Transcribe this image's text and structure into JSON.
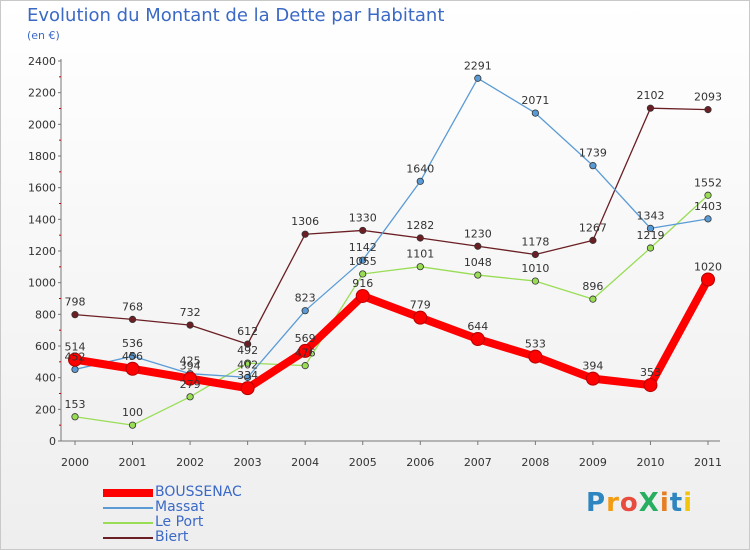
{
  "chart_data": {
    "type": "line",
    "title": "Evolution du Montant de la Dette par Habitant",
    "subtitle": "(en €)",
    "x": [
      "2000",
      "2001",
      "2002",
      "2003",
      "2004",
      "2005",
      "2006",
      "2007",
      "2008",
      "2009",
      "2010",
      "2011"
    ],
    "yticks": [
      0,
      200,
      400,
      600,
      800,
      1000,
      1200,
      1400,
      1600,
      1800,
      2000,
      2200,
      2400
    ],
    "ylim": [
      0,
      2400
    ],
    "grid": false,
    "legend_position": "bottom-left",
    "series": [
      {
        "name": "Biert",
        "color": "#6b1f24",
        "values": [
          798,
          768,
          732,
          612,
          1306,
          1330,
          1282,
          1230,
          1178,
          1267,
          2102,
          2093
        ]
      },
      {
        "name": "Le Port",
        "color": "#99dd55",
        "values": [
          153,
          100,
          279,
          492,
          476,
          1055,
          1101,
          1048,
          1010,
          896,
          1219,
          1552
        ]
      },
      {
        "name": "Massat",
        "color": "#5b9bd5",
        "values": [
          452,
          536,
          425,
          402,
          823,
          1142,
          1640,
          2291,
          2071,
          1739,
          1343,
          1403
        ]
      },
      {
        "name": "BOUSSENAC",
        "color": "#ff0000",
        "values": [
          514,
          456,
          394,
          334,
          569,
          916,
          779,
          644,
          533,
          394,
          353,
          1020
        ]
      }
    ],
    "legend_order": [
      "BOUSSENAC",
      "Massat",
      "Le Port",
      "Biert"
    ]
  },
  "logo": {
    "text": "ProXiti",
    "colors": [
      "#2e86c1",
      "#f39c12",
      "#e74c3c",
      "#27ae60",
      "#e67e22",
      "#2e86c1",
      "#f1c40f"
    ]
  }
}
